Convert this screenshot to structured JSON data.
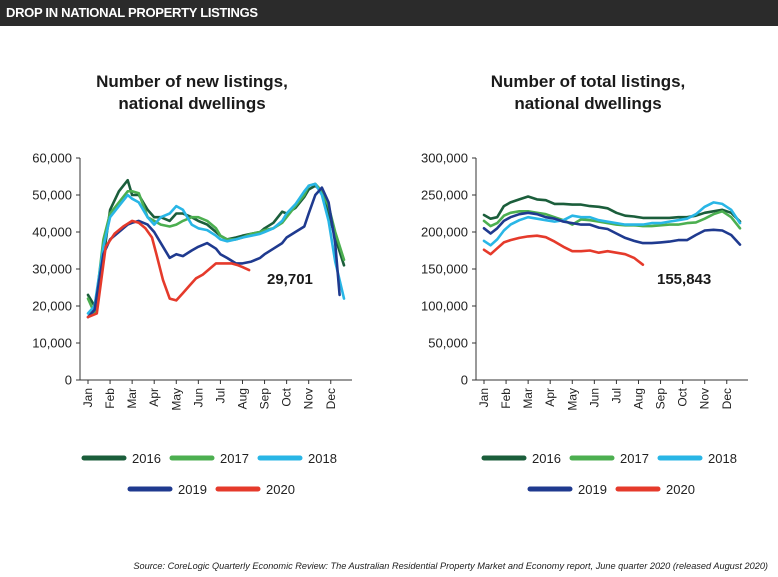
{
  "banner": {
    "title": "DROP IN NATIONAL PROPERTY LISTINGS"
  },
  "source": "Source: CoreLogic Quarterly Economic Review: The Australian Residential Property Market and Economy report, June quarter 2020 (released August 2020)",
  "colors": {
    "2016": "#1b5e3b",
    "2017": "#4caf50",
    "2018": "#29b6e6",
    "2019": "#1f3a8f",
    "2020": "#e53a2b",
    "banner": "#2b2b2b"
  },
  "legend": [
    "2016",
    "2017",
    "2018",
    "2019",
    "2020"
  ],
  "chart_data": [
    {
      "type": "line",
      "title": "Number of new listings,\nnational dwellings",
      "title_lines": [
        "Number of new listings,",
        "national dwellings"
      ],
      "categories": [
        "Jan",
        "Feb",
        "Mar",
        "Apr",
        "May",
        "Jun",
        "Jul",
        "Aug",
        "Sep",
        "Oct",
        "Nov",
        "Dec"
      ],
      "ylim": [
        0,
        60000
      ],
      "yticks": [
        0,
        10000,
        20000,
        30000,
        40000,
        50000,
        60000
      ],
      "ytick_labels": [
        "0",
        "10,000",
        "20,000",
        "30,000",
        "40,000",
        "50,000",
        "60,000"
      ],
      "annotation": "29,701",
      "series": [
        {
          "name": "2016",
          "x": [
            0,
            0.3,
            0.7,
            1,
            1.4,
            1.8,
            2,
            2.3,
            2.7,
            3,
            3.3,
            3.7,
            4,
            4.3,
            4.7,
            5,
            5.4,
            5.8,
            6,
            6.3,
            6.7,
            7,
            7.4,
            7.8,
            8,
            8.4,
            8.8,
            9,
            9.4,
            9.8,
            10,
            10.3,
            10.6,
            10.9,
            11.2,
            11.6
          ],
          "y": [
            23000,
            20000,
            33000,
            46000,
            51000,
            54000,
            50000,
            50000,
            46000,
            44000,
            44000,
            43000,
            45000,
            45000,
            44000,
            43000,
            42000,
            40000,
            39000,
            38000,
            38500,
            39000,
            39500,
            40000,
            41000,
            42500,
            45500,
            45000,
            46500,
            49500,
            51500,
            52500,
            51000,
            45000,
            38500,
            31000
          ]
        },
        {
          "name": "2017",
          "x": [
            0,
            0.3,
            0.7,
            1,
            1.4,
            1.8,
            2,
            2.3,
            2.7,
            3,
            3.3,
            3.7,
            4,
            4.3,
            4.7,
            5,
            5.4,
            5.8,
            6,
            6.3,
            6.7,
            7,
            7.4,
            7.8,
            8,
            8.4,
            8.8,
            9,
            9.4,
            9.8,
            10,
            10.3,
            10.6,
            10.9,
            11.2,
            11.6
          ],
          "y": [
            22000,
            18000,
            38000,
            45000,
            48000,
            51000,
            51000,
            50500,
            44000,
            43000,
            42000,
            41500,
            42000,
            43000,
            44000,
            44000,
            43000,
            41000,
            39000,
            38000,
            38000,
            38500,
            39500,
            40000,
            40500,
            41000,
            42500,
            44000,
            47000,
            50000,
            52500,
            53000,
            51000,
            47000,
            40000,
            32500
          ]
        },
        {
          "name": "2018",
          "x": [
            0,
            0.3,
            0.7,
            1,
            1.4,
            1.8,
            2,
            2.3,
            2.7,
            3,
            3.3,
            3.7,
            4,
            4.3,
            4.7,
            5,
            5.4,
            5.8,
            6,
            6.3,
            6.7,
            7,
            7.4,
            7.8,
            8,
            8.4,
            8.8,
            9,
            9.4,
            9.8,
            10,
            10.3,
            10.6,
            10.9,
            11.2,
            11.6
          ],
          "y": [
            18000,
            20000,
            36000,
            44000,
            47000,
            50000,
            49000,
            48000,
            44000,
            42000,
            44000,
            45000,
            47000,
            46000,
            42000,
            41000,
            40500,
            39000,
            38000,
            37500,
            38000,
            38500,
            39000,
            39500,
            40000,
            41000,
            43000,
            45000,
            47500,
            51000,
            52500,
            53000,
            50000,
            43000,
            32000,
            22000
          ]
        },
        {
          "name": "2019",
          "x": [
            0,
            0.3,
            0.7,
            1,
            1.4,
            1.8,
            2,
            2.3,
            2.7,
            3,
            3.3,
            3.7,
            4,
            4.3,
            4.7,
            5,
            5.4,
            5.8,
            6,
            6.3,
            6.7,
            7,
            7.4,
            7.8,
            8,
            8.4,
            8.8,
            9,
            9.4,
            9.8,
            10,
            10.3,
            10.6,
            10.9,
            11.2,
            11.4
          ],
          "y": [
            17000,
            19000,
            34000,
            38000,
            40000,
            42000,
            42500,
            43000,
            42000,
            40000,
            37000,
            33000,
            34000,
            33500,
            35000,
            36000,
            37000,
            35500,
            34000,
            33000,
            31500,
            31500,
            32000,
            33000,
            34000,
            35500,
            37000,
            38500,
            40000,
            41500,
            45000,
            50000,
            52000,
            48000,
            37000,
            23000
          ]
        },
        {
          "name": "2020",
          "x": [
            0,
            0.4,
            0.8,
            1.2,
            1.6,
            2,
            2.3,
            2.6,
            2.9,
            3.1,
            3.4,
            3.7,
            4,
            4.3,
            4.6,
            4.9,
            5.2,
            5.5,
            5.8,
            6,
            6.2,
            6.5,
            6.8,
            7,
            7.3
          ],
          "y": [
            17000,
            18000,
            36000,
            39500,
            41500,
            43000,
            42500,
            41000,
            38500,
            34000,
            27000,
            22000,
            21500,
            23500,
            25500,
            27500,
            28500,
            30000,
            31500,
            31500,
            31500,
            31500,
            31000,
            30500,
            29701
          ]
        }
      ]
    },
    {
      "type": "line",
      "title": "Number of total listings,\nnational dwellings",
      "title_lines": [
        "Number of total listings,",
        "national dwellings"
      ],
      "categories": [
        "Jan",
        "Feb",
        "Mar",
        "Apr",
        "May",
        "Jun",
        "Jul",
        "Aug",
        "Sep",
        "Oct",
        "Nov",
        "Dec"
      ],
      "ylim": [
        0,
        300000
      ],
      "yticks": [
        0,
        50000,
        100000,
        150000,
        200000,
        250000,
        300000
      ],
      "ytick_labels": [
        "0",
        "50,000",
        "100,000",
        "150,000",
        "200,000",
        "250,000",
        "300,000"
      ],
      "annotation": "155,843",
      "series": [
        {
          "name": "2016",
          "x": [
            0,
            0.3,
            0.6,
            0.9,
            1.2,
            1.6,
            2,
            2.4,
            2.8,
            3.2,
            3.6,
            4,
            4.4,
            4.8,
            5.2,
            5.6,
            6,
            6.4,
            6.8,
            7.2,
            7.6,
            8,
            8.4,
            8.8,
            9.2,
            9.6,
            10,
            10.4,
            10.8,
            11.2,
            11.6
          ],
          "y": [
            223000,
            218000,
            220000,
            235000,
            240000,
            244000,
            248000,
            244000,
            243000,
            238000,
            238000,
            237000,
            237000,
            235000,
            234000,
            232000,
            226000,
            222000,
            221000,
            219000,
            219000,
            219000,
            219000,
            220000,
            220000,
            222000,
            226000,
            228000,
            230000,
            226000,
            214000
          ]
        },
        {
          "name": "2017",
          "x": [
            0,
            0.3,
            0.6,
            0.9,
            1.2,
            1.6,
            2,
            2.4,
            2.8,
            3.2,
            3.6,
            4,
            4.4,
            4.8,
            5.2,
            5.6,
            6,
            6.4,
            6.8,
            7.2,
            7.6,
            8,
            8.4,
            8.8,
            9.2,
            9.6,
            10,
            10.4,
            10.8,
            11.2,
            11.6
          ],
          "y": [
            215000,
            208000,
            212000,
            222000,
            226000,
            228000,
            228000,
            226000,
            224000,
            220000,
            216000,
            210000,
            217000,
            216000,
            214000,
            212000,
            210000,
            209000,
            209000,
            208000,
            208000,
            209000,
            210000,
            210000,
            212000,
            213000,
            218000,
            224000,
            228000,
            220000,
            205000
          ]
        },
        {
          "name": "2018",
          "x": [
            0,
            0.3,
            0.6,
            0.9,
            1.2,
            1.6,
            2,
            2.4,
            2.8,
            3.2,
            3.6,
            4,
            4.4,
            4.8,
            5.2,
            5.6,
            6,
            6.4,
            6.8,
            7.2,
            7.6,
            8,
            8.4,
            8.8,
            9.2,
            9.6,
            10,
            10.4,
            10.8,
            11.2,
            11.6
          ],
          "y": [
            188000,
            182000,
            190000,
            202000,
            210000,
            216000,
            220000,
            218000,
            216000,
            214000,
            216000,
            222000,
            220000,
            220000,
            216000,
            214000,
            212000,
            210000,
            210000,
            210000,
            212000,
            212000,
            214000,
            216000,
            218000,
            224000,
            234000,
            240000,
            238000,
            230000,
            212000
          ]
        },
        {
          "name": "2019",
          "x": [
            0,
            0.3,
            0.6,
            0.9,
            1.2,
            1.6,
            2,
            2.4,
            2.8,
            3.2,
            3.6,
            4,
            4.4,
            4.8,
            5.2,
            5.6,
            6,
            6.4,
            6.8,
            7.2,
            7.6,
            8,
            8.4,
            8.8,
            9.2,
            9.6,
            10,
            10.4,
            10.8,
            11.2,
            11.6
          ],
          "y": [
            205000,
            198000,
            205000,
            215000,
            220000,
            224000,
            226000,
            224000,
            220000,
            218000,
            214000,
            212000,
            210000,
            210000,
            206000,
            204000,
            198000,
            192000,
            188000,
            185000,
            185000,
            186000,
            187000,
            189000,
            189000,
            196000,
            202000,
            203000,
            202000,
            196000,
            183000
          ]
        },
        {
          "name": "2020",
          "x": [
            0,
            0.3,
            0.6,
            0.9,
            1.2,
            1.6,
            2,
            2.4,
            2.8,
            3.2,
            3.6,
            4,
            4.4,
            4.8,
            5.2,
            5.6,
            6,
            6.4,
            6.8,
            7.2
          ],
          "y": [
            176000,
            170000,
            178000,
            186000,
            189000,
            192000,
            194000,
            195000,
            193000,
            187000,
            180000,
            174000,
            174000,
            175000,
            172000,
            174000,
            172000,
            170000,
            165000,
            155843
          ]
        }
      ]
    }
  ]
}
